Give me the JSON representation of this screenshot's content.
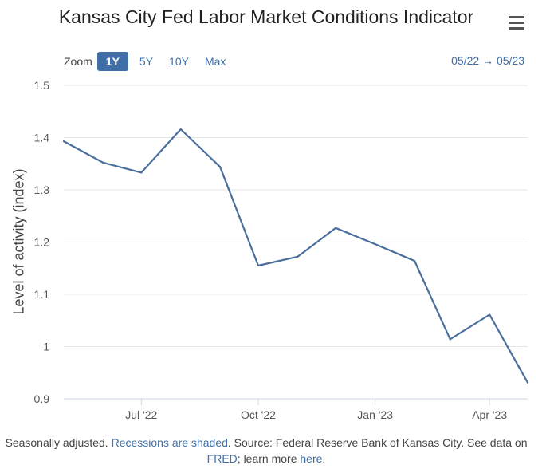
{
  "title": "Kansas City Fed Labor Market Conditions Indicator",
  "menu_icon": "hamburger-menu-icon",
  "zoom": {
    "label": "Zoom",
    "options": [
      "1Y",
      "5Y",
      "10Y",
      "Max"
    ],
    "selected": "1Y"
  },
  "date_range": "05/22 → 05/23",
  "footer": {
    "text1": "Seasonally adjusted.",
    "link_recessions": "Recessions are shaded",
    "text2": ". Source: Federal Reserve Bank of Kansas City. See data on",
    "link_fred": "FRED",
    "text3": "; learn more",
    "link_here": "here",
    "text4": "."
  },
  "colors": {
    "line": "#4a6f9c",
    "accent": "#3f6fa6",
    "grid": "#e6e6e6"
  },
  "chart_data": {
    "type": "line",
    "title": "Kansas City Fed Labor Market Conditions Indicator",
    "xlabel": "",
    "ylabel": "Level of activity (index)",
    "ylim": [
      0.9,
      1.5
    ],
    "y_ticks": [
      0.9,
      1,
      1.1,
      1.2,
      1.3,
      1.4,
      1.5
    ],
    "y_tick_labels": [
      "0.9",
      "1",
      "1.1",
      "1.2",
      "1.3",
      "1.4",
      "1.5"
    ],
    "x_ticks": [
      {
        "date": "2022-07-01",
        "label": "Jul '22"
      },
      {
        "date": "2022-10-01",
        "label": "Oct '22"
      },
      {
        "date": "2023-01-01",
        "label": "Jan '23"
      },
      {
        "date": "2023-04-01",
        "label": "Apr '23"
      }
    ],
    "xlim": [
      "2022-05-01",
      "2023-05-01"
    ],
    "grid": true,
    "legend": "none",
    "series": [
      {
        "x": [
          "2022-05-01",
          "2022-06-01",
          "2022-07-01",
          "2022-08-01",
          "2022-09-01",
          "2022-10-01",
          "2022-11-01",
          "2022-12-01",
          "2023-01-01",
          "2023-02-01",
          "2023-03-01",
          "2023-04-01",
          "2023-05-01"
        ],
        "values": [
          1.393,
          1.352,
          1.333,
          1.416,
          1.344,
          1.155,
          1.172,
          1.227,
          1.196,
          1.164,
          1.014,
          1.061,
          0.931
        ]
      }
    ]
  }
}
